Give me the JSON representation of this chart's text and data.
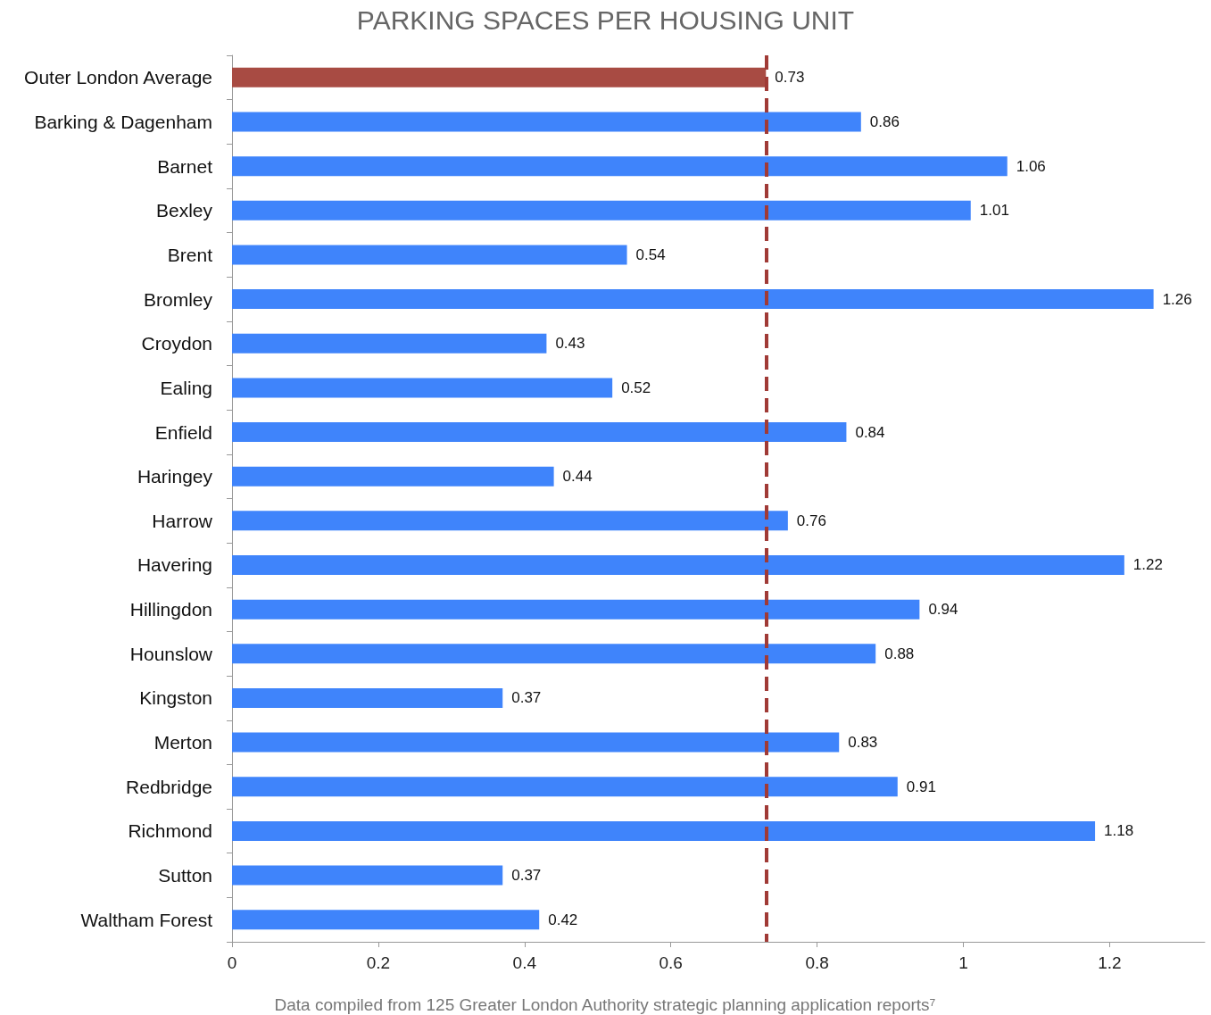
{
  "chart_data": {
    "type": "bar",
    "orientation": "horizontal",
    "title": "PARKING SPACES PER HOUSING UNIT",
    "categories": [
      "Outer London Average",
      "Barking & Dagenham",
      "Barnet",
      "Bexley",
      "Brent",
      "Bromley",
      "Croydon",
      "Ealing",
      "Enfield",
      "Haringey",
      "Harrow",
      "Havering",
      "Hillingdon",
      "Hounslow",
      "Kingston",
      "Merton",
      "Redbridge",
      "Richmond",
      "Sutton",
      "Waltham Forest"
    ],
    "values": [
      0.73,
      0.86,
      1.06,
      1.01,
      0.54,
      1.26,
      0.43,
      0.52,
      0.84,
      0.44,
      0.76,
      1.22,
      0.94,
      0.88,
      0.37,
      0.83,
      0.91,
      1.18,
      0.37,
      0.42
    ],
    "colors": [
      "#a84b43",
      "#3f84fb",
      "#3f84fb",
      "#3f84fb",
      "#3f84fb",
      "#3f84fb",
      "#3f84fb",
      "#3f84fb",
      "#3f84fb",
      "#3f84fb",
      "#3f84fb",
      "#3f84fb",
      "#3f84fb",
      "#3f84fb",
      "#3f84fb",
      "#3f84fb",
      "#3f84fb",
      "#3f84fb",
      "#3f84fb",
      "#3f84fb"
    ],
    "xlim": [
      0,
      1.33
    ],
    "xticks": [
      0,
      0.2,
      0.4,
      0.6,
      0.8,
      1,
      1.2
    ],
    "data_labels": true,
    "grid": false,
    "ref_lines": [
      {
        "axis": "x",
        "value": 0.73,
        "label": null,
        "color": "#a03a36",
        "line_style": "dashed"
      }
    ],
    "annotations": [
      "Data compiled from 125 Greater London Authority strategic planning application reports⁷"
    ]
  }
}
